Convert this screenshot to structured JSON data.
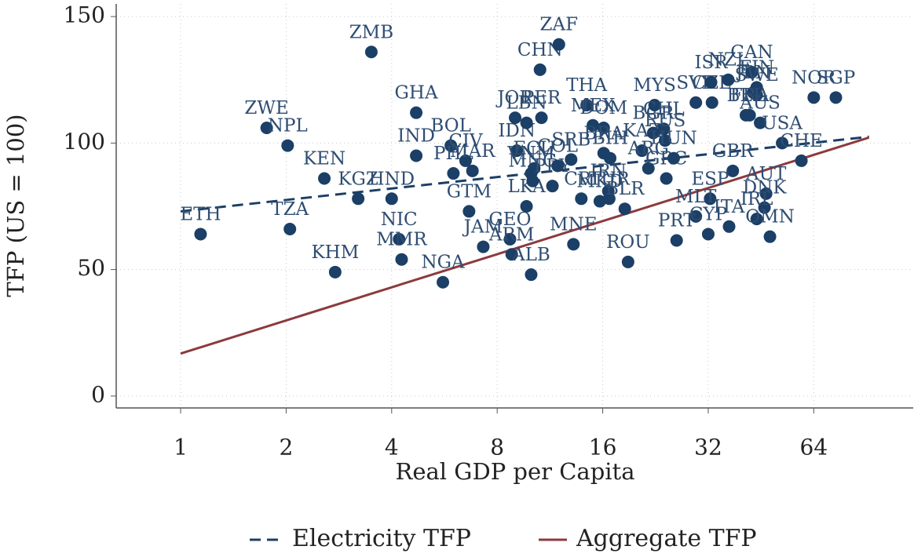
{
  "chart_data": {
    "type": "scatter",
    "y_label": "TFP (US = 100)",
    "x_label": "Real GDP per Capita",
    "x_scale": "log2",
    "xlim": [
      0.655,
      123
    ],
    "ylim": [
      -4.7,
      155
    ],
    "xticks": [
      1,
      2,
      4,
      8,
      16,
      32,
      64
    ],
    "yticks": [
      0,
      50,
      100,
      150
    ],
    "grid": true,
    "points": {
      "color": "#1b3f66",
      "labels": [
        "ETH",
        "TZA",
        "ZWE",
        "NPL",
        "KEN",
        "KGZ",
        "HND",
        "KHM",
        "ZMB",
        "NIC",
        "MMR",
        "IND",
        "GHA",
        "NGA",
        "BOL",
        "PHL",
        "CIV",
        "MAR",
        "GTM",
        "JAM",
        "GEO",
        "ARM",
        "ALB",
        "LKA",
        "IDN",
        "JOR",
        "LBN",
        "PER",
        "CHN",
        "ZAF",
        "VNM",
        "MNG",
        "ECU",
        "PRY",
        "COL",
        "SRB",
        "CRI",
        "THA",
        "MNE",
        "MEX",
        "DOM",
        "BRA",
        "BIH",
        "IRN",
        "TUR",
        "MKD",
        "BLR",
        "ROU",
        "KAZ",
        "ARG",
        "BGR",
        "MYS",
        "CHL",
        "RUS",
        "GRC",
        "HUN",
        "SVK",
        "CZE",
        "ISR",
        "NZL",
        "JPN",
        "FIN",
        "CAN",
        "SWE",
        "BEL",
        "FRA",
        "AUS",
        "NOR",
        "SGP",
        "USA",
        "CHE",
        "GBR",
        "ESP",
        "AUT",
        "ITA",
        "MLT",
        "CYP",
        "PRT",
        "DNK",
        "IRL",
        "OMN"
      ],
      "x": [
        1.14,
        2.05,
        1.76,
        2.02,
        2.57,
        3.21,
        4.0,
        2.76,
        3.5,
        4.2,
        4.27,
        4.7,
        4.7,
        5.6,
        5.9,
        6.0,
        6.5,
        6.8,
        6.65,
        7.3,
        8.7,
        8.8,
        10,
        9.7,
        9.1,
        9.0,
        9.7,
        10.7,
        10.6,
        12,
        10,
        10.1,
        10.2,
        11.5,
        11.9,
        13.0,
        13.9,
        14.4,
        13.2,
        15.0,
        16.1,
        16.1,
        16.8,
        16.6,
        16.7,
        15.7,
        18.5,
        18.9,
        20.7,
        21.6,
        22.3,
        22.5,
        23.9,
        24.1,
        24.3,
        25.5,
        29.5,
        32.8,
        32.6,
        36.5,
        43,
        44,
        42.6,
        44,
        41,
        42,
        45,
        64,
        74,
        52,
        59,
        37.6,
        32.4,
        46.8,
        36.7,
        29.5,
        32,
        26,
        46.3,
        44,
        48
      ],
      "values": [
        64,
        66,
        106,
        99,
        86,
        78,
        78,
        49,
        136,
        62,
        54,
        95,
        112,
        45,
        99,
        88,
        93,
        89,
        73,
        59,
        62,
        56,
        48,
        75,
        97,
        110,
        108,
        110,
        129,
        139,
        88,
        85,
        90,
        83,
        91,
        93.5,
        78,
        115,
        60,
        107,
        106,
        96,
        94,
        81,
        78,
        77,
        74,
        53,
        97,
        90,
        104,
        115,
        105.6,
        101,
        86,
        94,
        116,
        116,
        124,
        125,
        120,
        122,
        128,
        119,
        111,
        111,
        108,
        118,
        118,
        100,
        93,
        89,
        78,
        80,
        67,
        71,
        64,
        61.5,
        74.5,
        70,
        63
      ]
    },
    "series": [
      {
        "name": "Electricity TFP",
        "color": "#1b3f66",
        "dashed": true,
        "x": [
          1,
          92
        ],
        "values": [
          73,
          102.5
        ]
      },
      {
        "name": "Aggregate TFP",
        "color": "#8c3a3d",
        "dashed": false,
        "x": [
          1,
          92
        ],
        "values": [
          16.8,
          102.2
        ]
      }
    ]
  }
}
